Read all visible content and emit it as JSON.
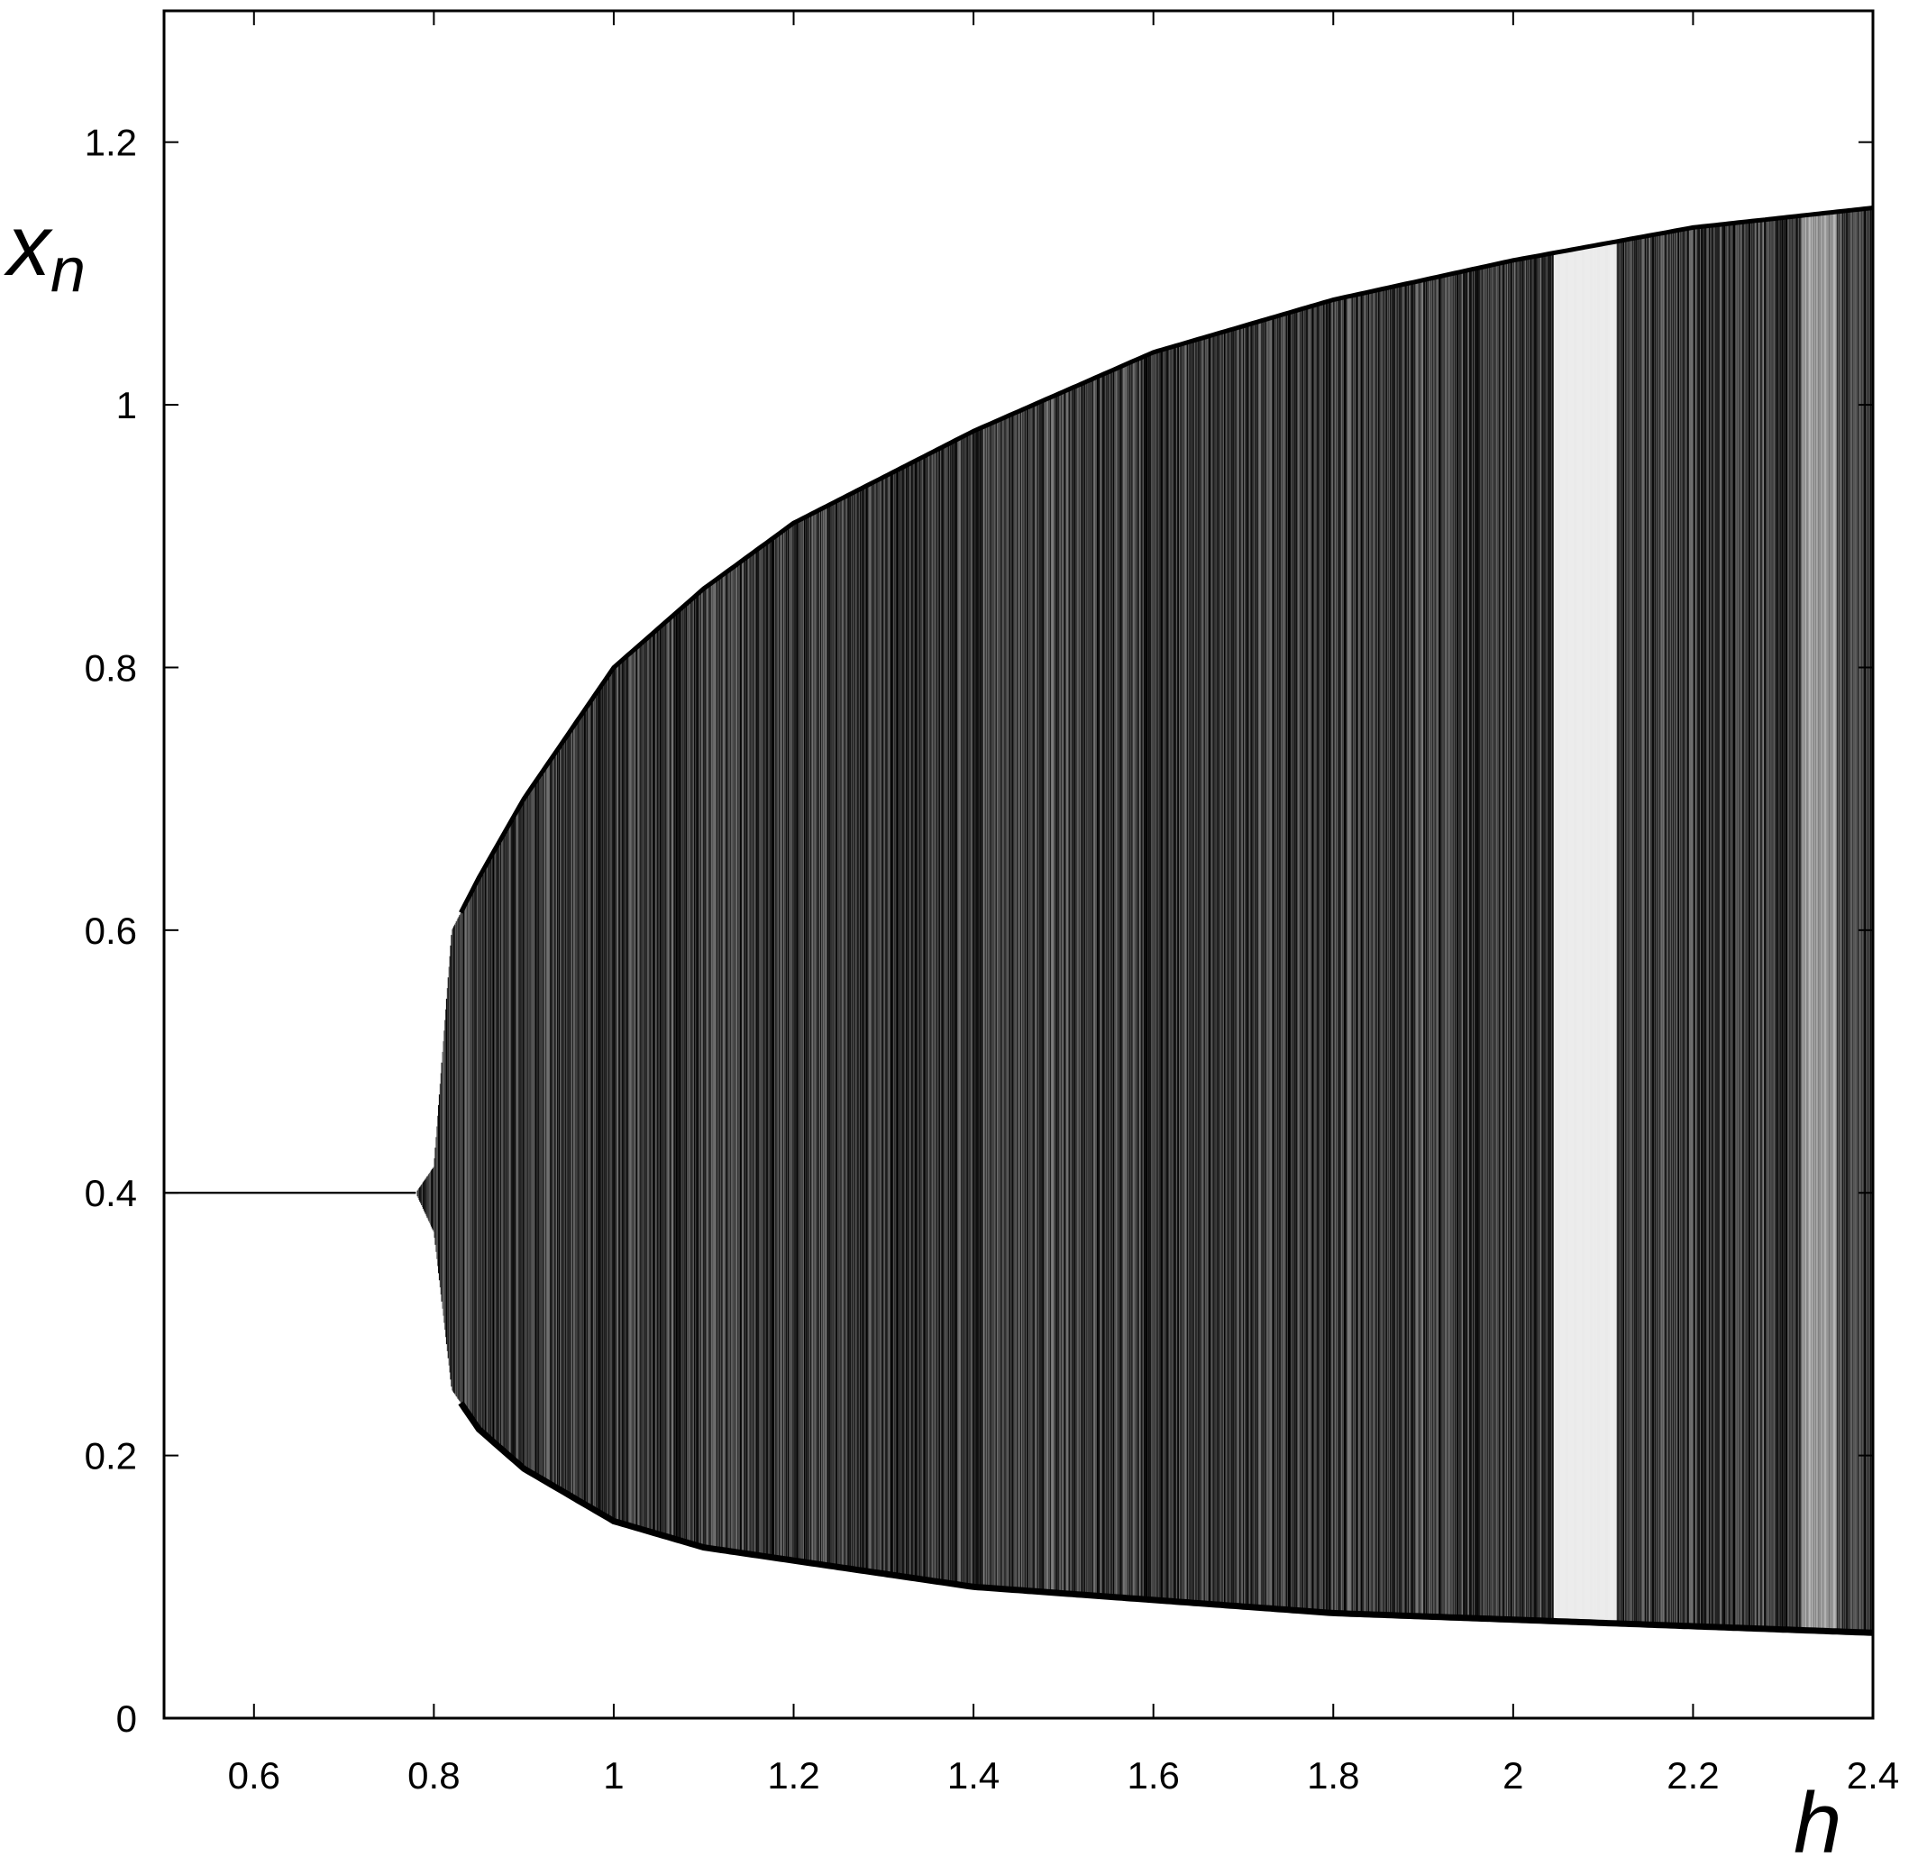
{
  "chart_data": {
    "type": "scatter",
    "title": "",
    "xlabel": "h",
    "ylabel": {
      "base": "x",
      "subscript": "n"
    },
    "xlim": [
      0.5,
      2.4
    ],
    "ylim": [
      0,
      1.3
    ],
    "xticks": [
      0.6,
      0.8,
      1,
      1.2,
      1.4,
      1.6,
      1.8,
      2,
      2.2,
      2.4
    ],
    "xtick_labels": [
      "0.6",
      "0.8",
      "1",
      "1.2",
      "1.4",
      "1.6",
      "1.8",
      "2",
      "2.2",
      "2.4"
    ],
    "yticks": [
      0,
      0.2,
      0.4,
      0.6,
      0.8,
      1,
      1.2
    ],
    "ytick_labels": [
      "0",
      "0.2",
      "0.4",
      "0.6",
      "0.8",
      "1",
      "1.2"
    ],
    "grid": false,
    "legend": "none",
    "marker_color": "#000000",
    "series": [
      {
        "values": [
          {
            "x": 0.5,
            "y_min": 0.4,
            "y_max": 0.4
          },
          {
            "x": 0.78,
            "y_min": 0.4,
            "y_max": 0.4
          },
          {
            "x": 0.8,
            "y_min": 0.37,
            "y_max": 0.42
          },
          {
            "x": 0.82,
            "y_min": 0.25,
            "y_max": 0.6
          },
          {
            "x": 0.85,
            "y_min": 0.22,
            "y_max": 0.64
          },
          {
            "x": 0.9,
            "y_min": 0.19,
            "y_max": 0.7
          },
          {
            "x": 1.0,
            "y_min": 0.15,
            "y_max": 0.8
          },
          {
            "x": 1.1,
            "y_min": 0.13,
            "y_max": 0.86
          },
          {
            "x": 1.2,
            "y_min": 0.12,
            "y_max": 0.91
          },
          {
            "x": 1.4,
            "y_min": 0.1,
            "y_max": 0.98
          },
          {
            "x": 1.6,
            "y_min": 0.09,
            "y_max": 1.04
          },
          {
            "x": 1.8,
            "y_min": 0.08,
            "y_max": 1.08
          },
          {
            "x": 2.0,
            "y_min": 0.075,
            "y_max": 1.11
          },
          {
            "x": 2.2,
            "y_min": 0.07,
            "y_max": 1.135
          },
          {
            "x": 2.4,
            "y_min": 0.065,
            "y_max": 1.15
          }
        ]
      }
    ]
  }
}
